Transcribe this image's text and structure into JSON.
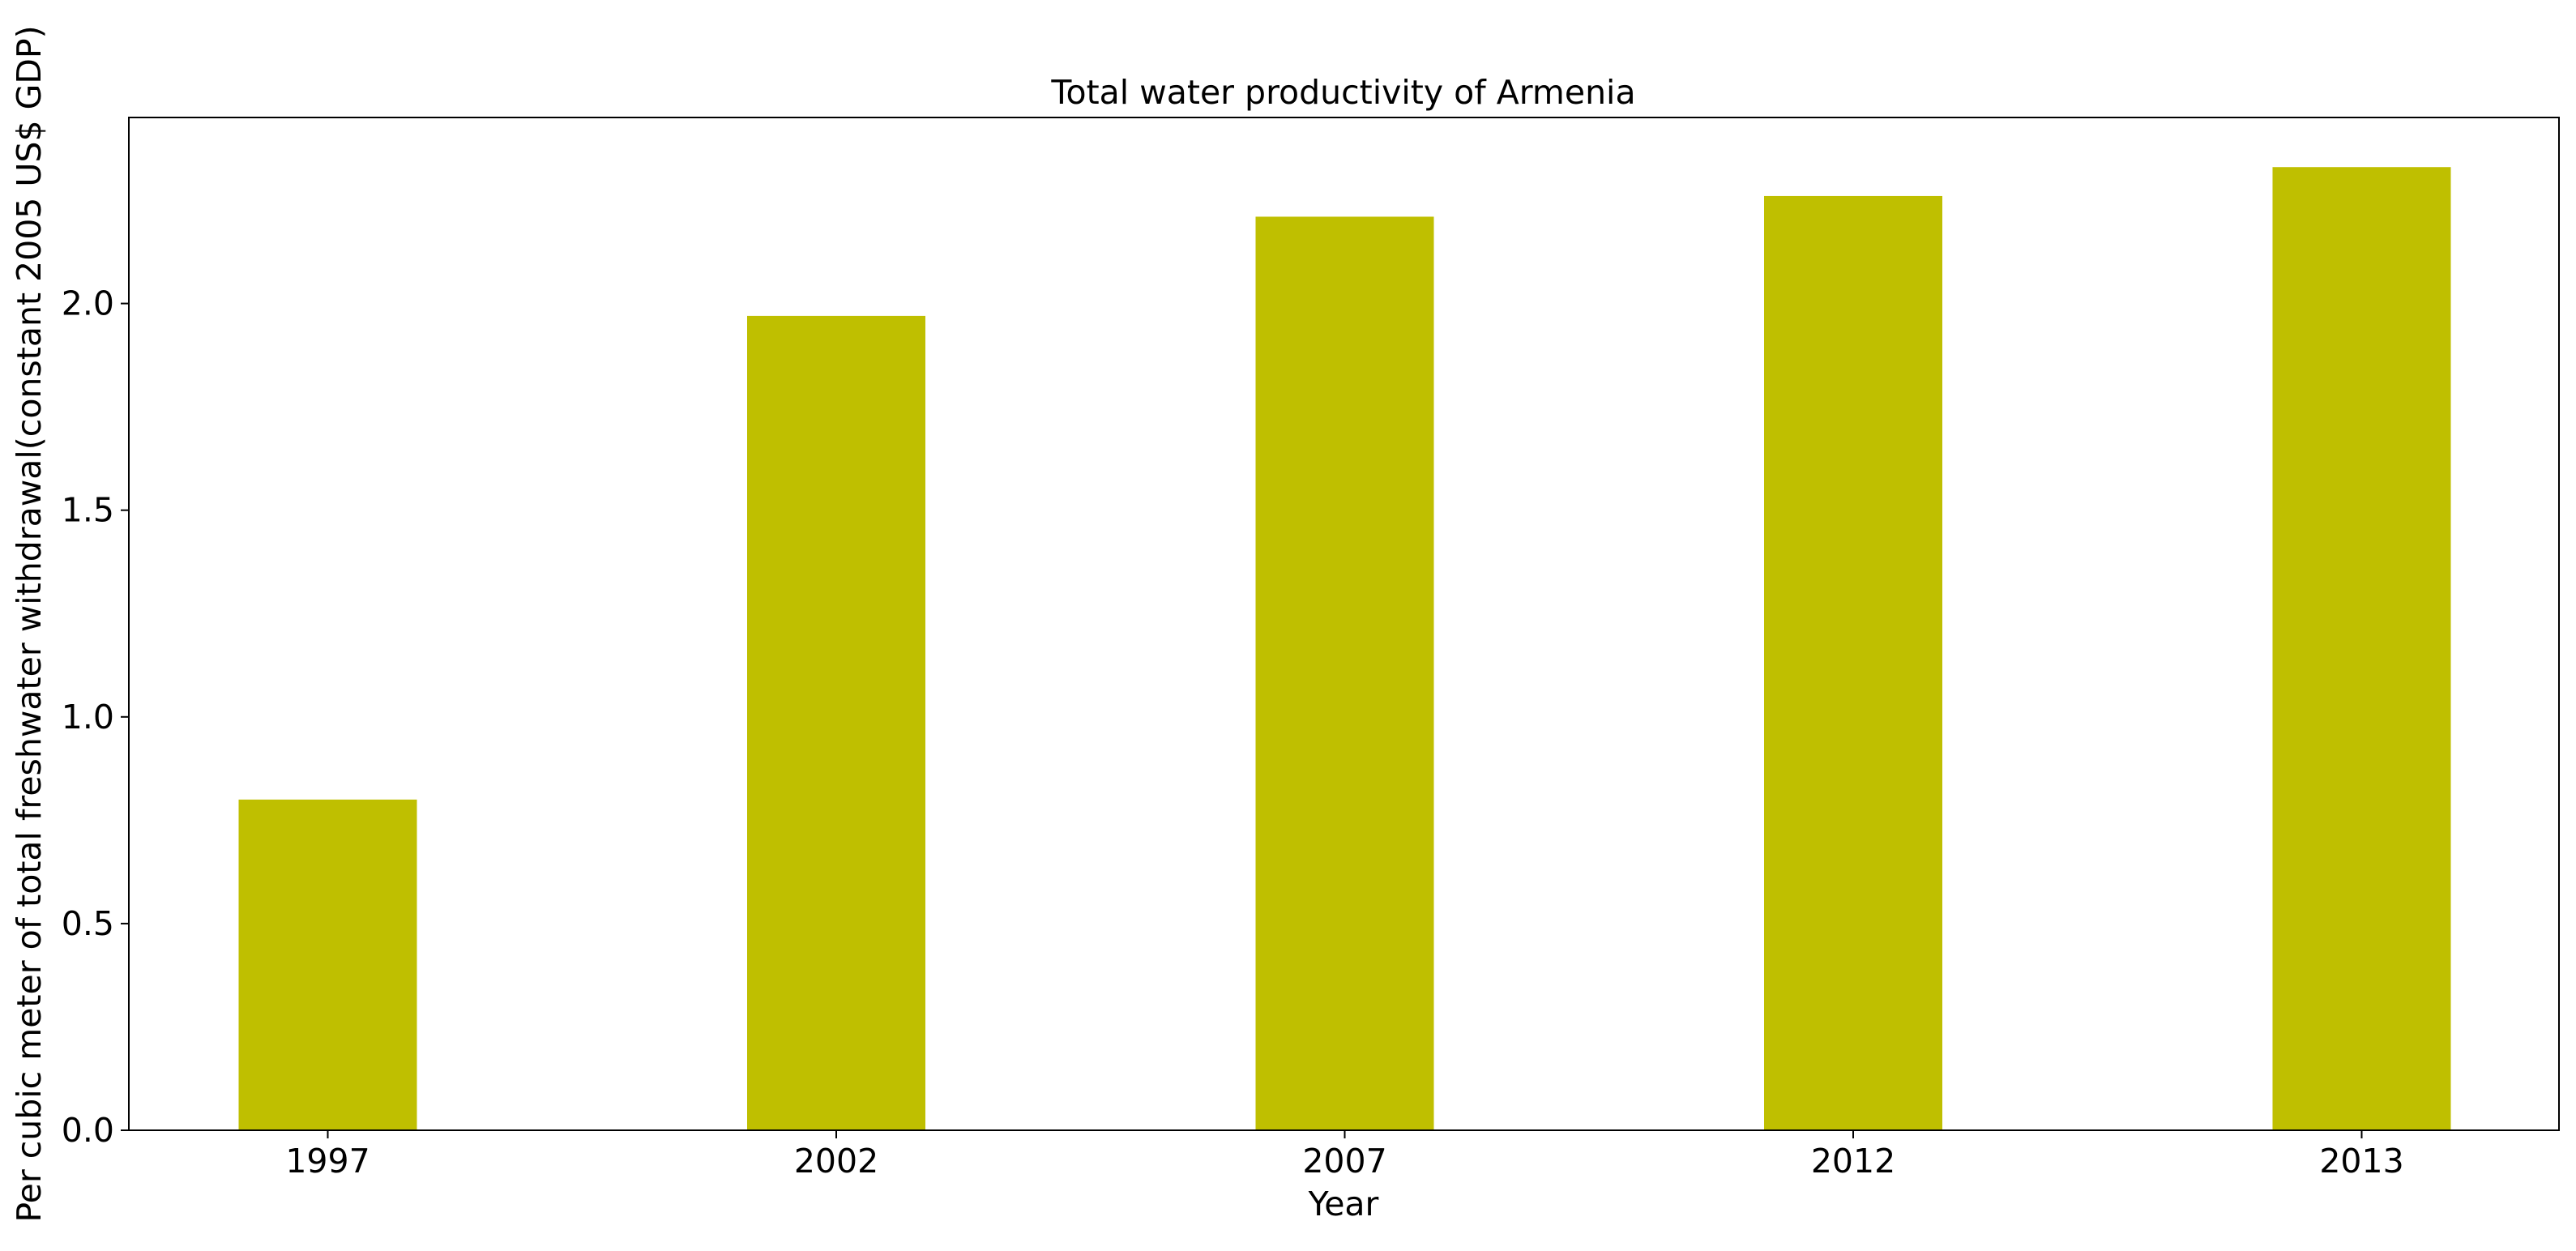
{
  "chart_data": {
    "type": "bar",
    "title": "Total water productivity of Armenia",
    "xlabel": "Year",
    "ylabel": "Per cubic meter of total freshwater withdrawal(constant 2005 US$ GDP)",
    "categories": [
      "1997",
      "2002",
      "2007",
      "2012",
      "2013"
    ],
    "values": [
      0.8,
      1.97,
      2.21,
      2.26,
      2.33
    ],
    "ylim": [
      0,
      2.45
    ],
    "yticks": [
      0.0,
      0.5,
      1.0,
      1.5,
      2.0
    ],
    "ytick_labels": [
      "0.0",
      "0.5",
      "1.0",
      "1.5",
      "2.0"
    ],
    "bar_color": "#bfbf00",
    "grid": false,
    "legend": "none"
  }
}
